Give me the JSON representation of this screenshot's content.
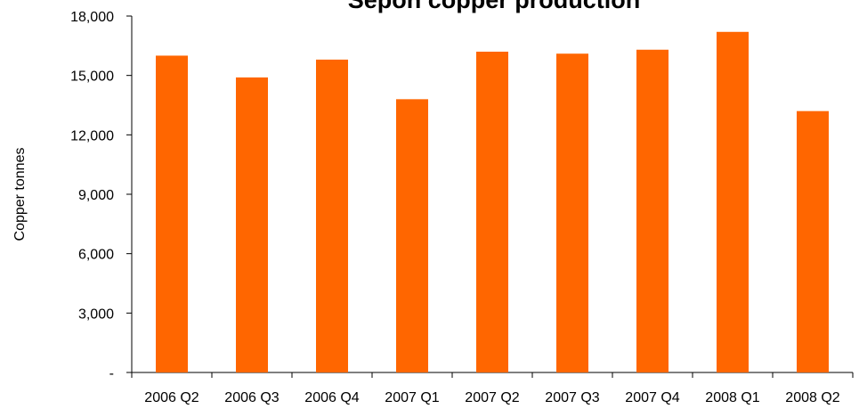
{
  "chart_data": {
    "type": "bar",
    "title": "Sepon copper production",
    "y_label": "Copper tonnes",
    "categories": [
      "2006 Q2",
      "2006 Q3",
      "2006 Q4",
      "2007 Q1",
      "2007 Q2",
      "2007 Q3",
      "2007 Q4",
      "2008 Q1",
      "2008 Q2"
    ],
    "values": [
      16000,
      14900,
      15800,
      13800,
      16200,
      16100,
      16300,
      17200,
      13200
    ],
    "color": "#ff6600",
    "ylim": [
      0,
      18000
    ],
    "yticks": [
      {
        "value": 0,
        "label": "-"
      },
      {
        "value": 3000,
        "label": "3,000"
      },
      {
        "value": 6000,
        "label": "6,000"
      },
      {
        "value": 9000,
        "label": "9,000"
      },
      {
        "value": 12000,
        "label": "12,000"
      },
      {
        "value": 15000,
        "label": "15,000"
      },
      {
        "value": 18000,
        "label": "18,000"
      }
    ],
    "grid": false
  }
}
